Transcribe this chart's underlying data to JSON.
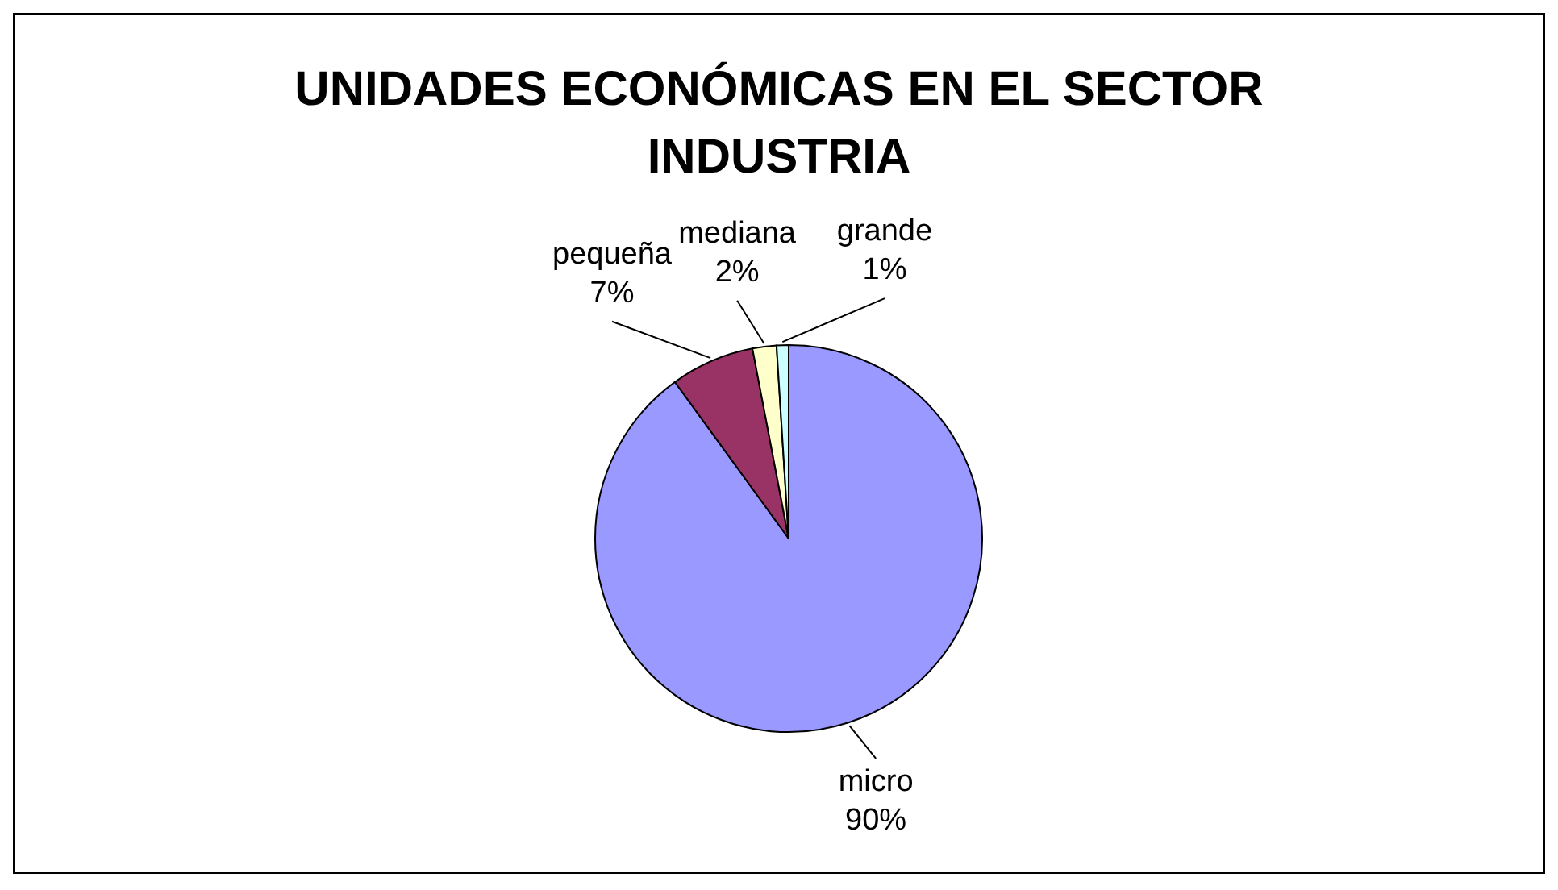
{
  "chart_data": {
    "type": "pie",
    "title": "UNIDADES ECONÓMICAS EN EL SECTOR INDUSTRIA",
    "categories": [
      "micro",
      "pequeña",
      "mediana",
      "grande"
    ],
    "values": [
      90,
      7,
      2,
      1
    ],
    "colors": [
      "#9999ff",
      "#993366",
      "#ffffcc",
      "#ccffff"
    ],
    "value_labels": [
      "90%",
      "7%",
      "2%",
      "1%"
    ],
    "legend": false
  }
}
